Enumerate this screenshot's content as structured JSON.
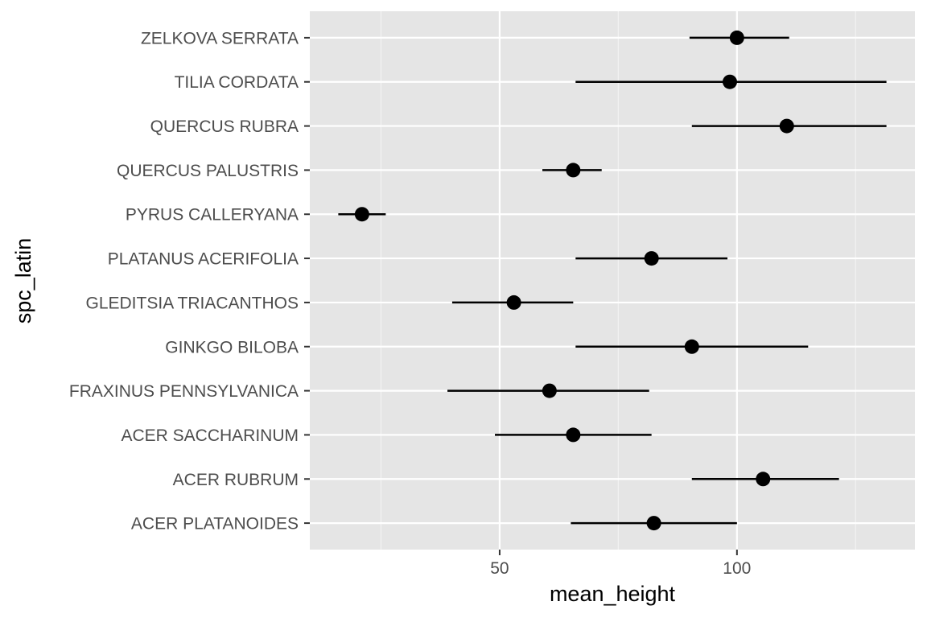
{
  "chart_data": {
    "type": "scatter",
    "subtype": "pointrange",
    "xlabel": "mean_height",
    "ylabel": "spc_latin",
    "xlim": [
      10,
      137.5
    ],
    "x_ticks": [
      50,
      100
    ],
    "x_minor_ticks": [
      25,
      75,
      125
    ],
    "grid": true,
    "categories": [
      "ACER PLATANOIDES",
      "ACER RUBRUM",
      "ACER SACCHARINUM",
      "FRAXINUS PENNSYLVANICA",
      "GINKGO BILOBA",
      "GLEDITSIA TRIACANTHOS",
      "PLATANUS ACERIFOLIA",
      "PYRUS CALLERYANA",
      "QUERCUS PALUSTRIS",
      "QUERCUS RUBRA",
      "TILIA CORDATA",
      "ZELKOVA SERRATA"
    ],
    "values": [
      82.5,
      105.5,
      65.5,
      60.5,
      90.5,
      53,
      82,
      21,
      65.5,
      110.5,
      98.5,
      100
    ],
    "lower": [
      65,
      90.5,
      49,
      39,
      66,
      40,
      66,
      16,
      59,
      90.5,
      66,
      90
    ],
    "upper": [
      100,
      121.5,
      82,
      81.5,
      115,
      65.5,
      98,
      26,
      71.5,
      131.5,
      131.5,
      111
    ]
  },
  "colors": {
    "panel_background": "#e5e5e5",
    "grid_major": "#ffffff",
    "grid_minor": "#f2f2f2",
    "tick_label": "#4d4d4d",
    "point": "#000000"
  }
}
